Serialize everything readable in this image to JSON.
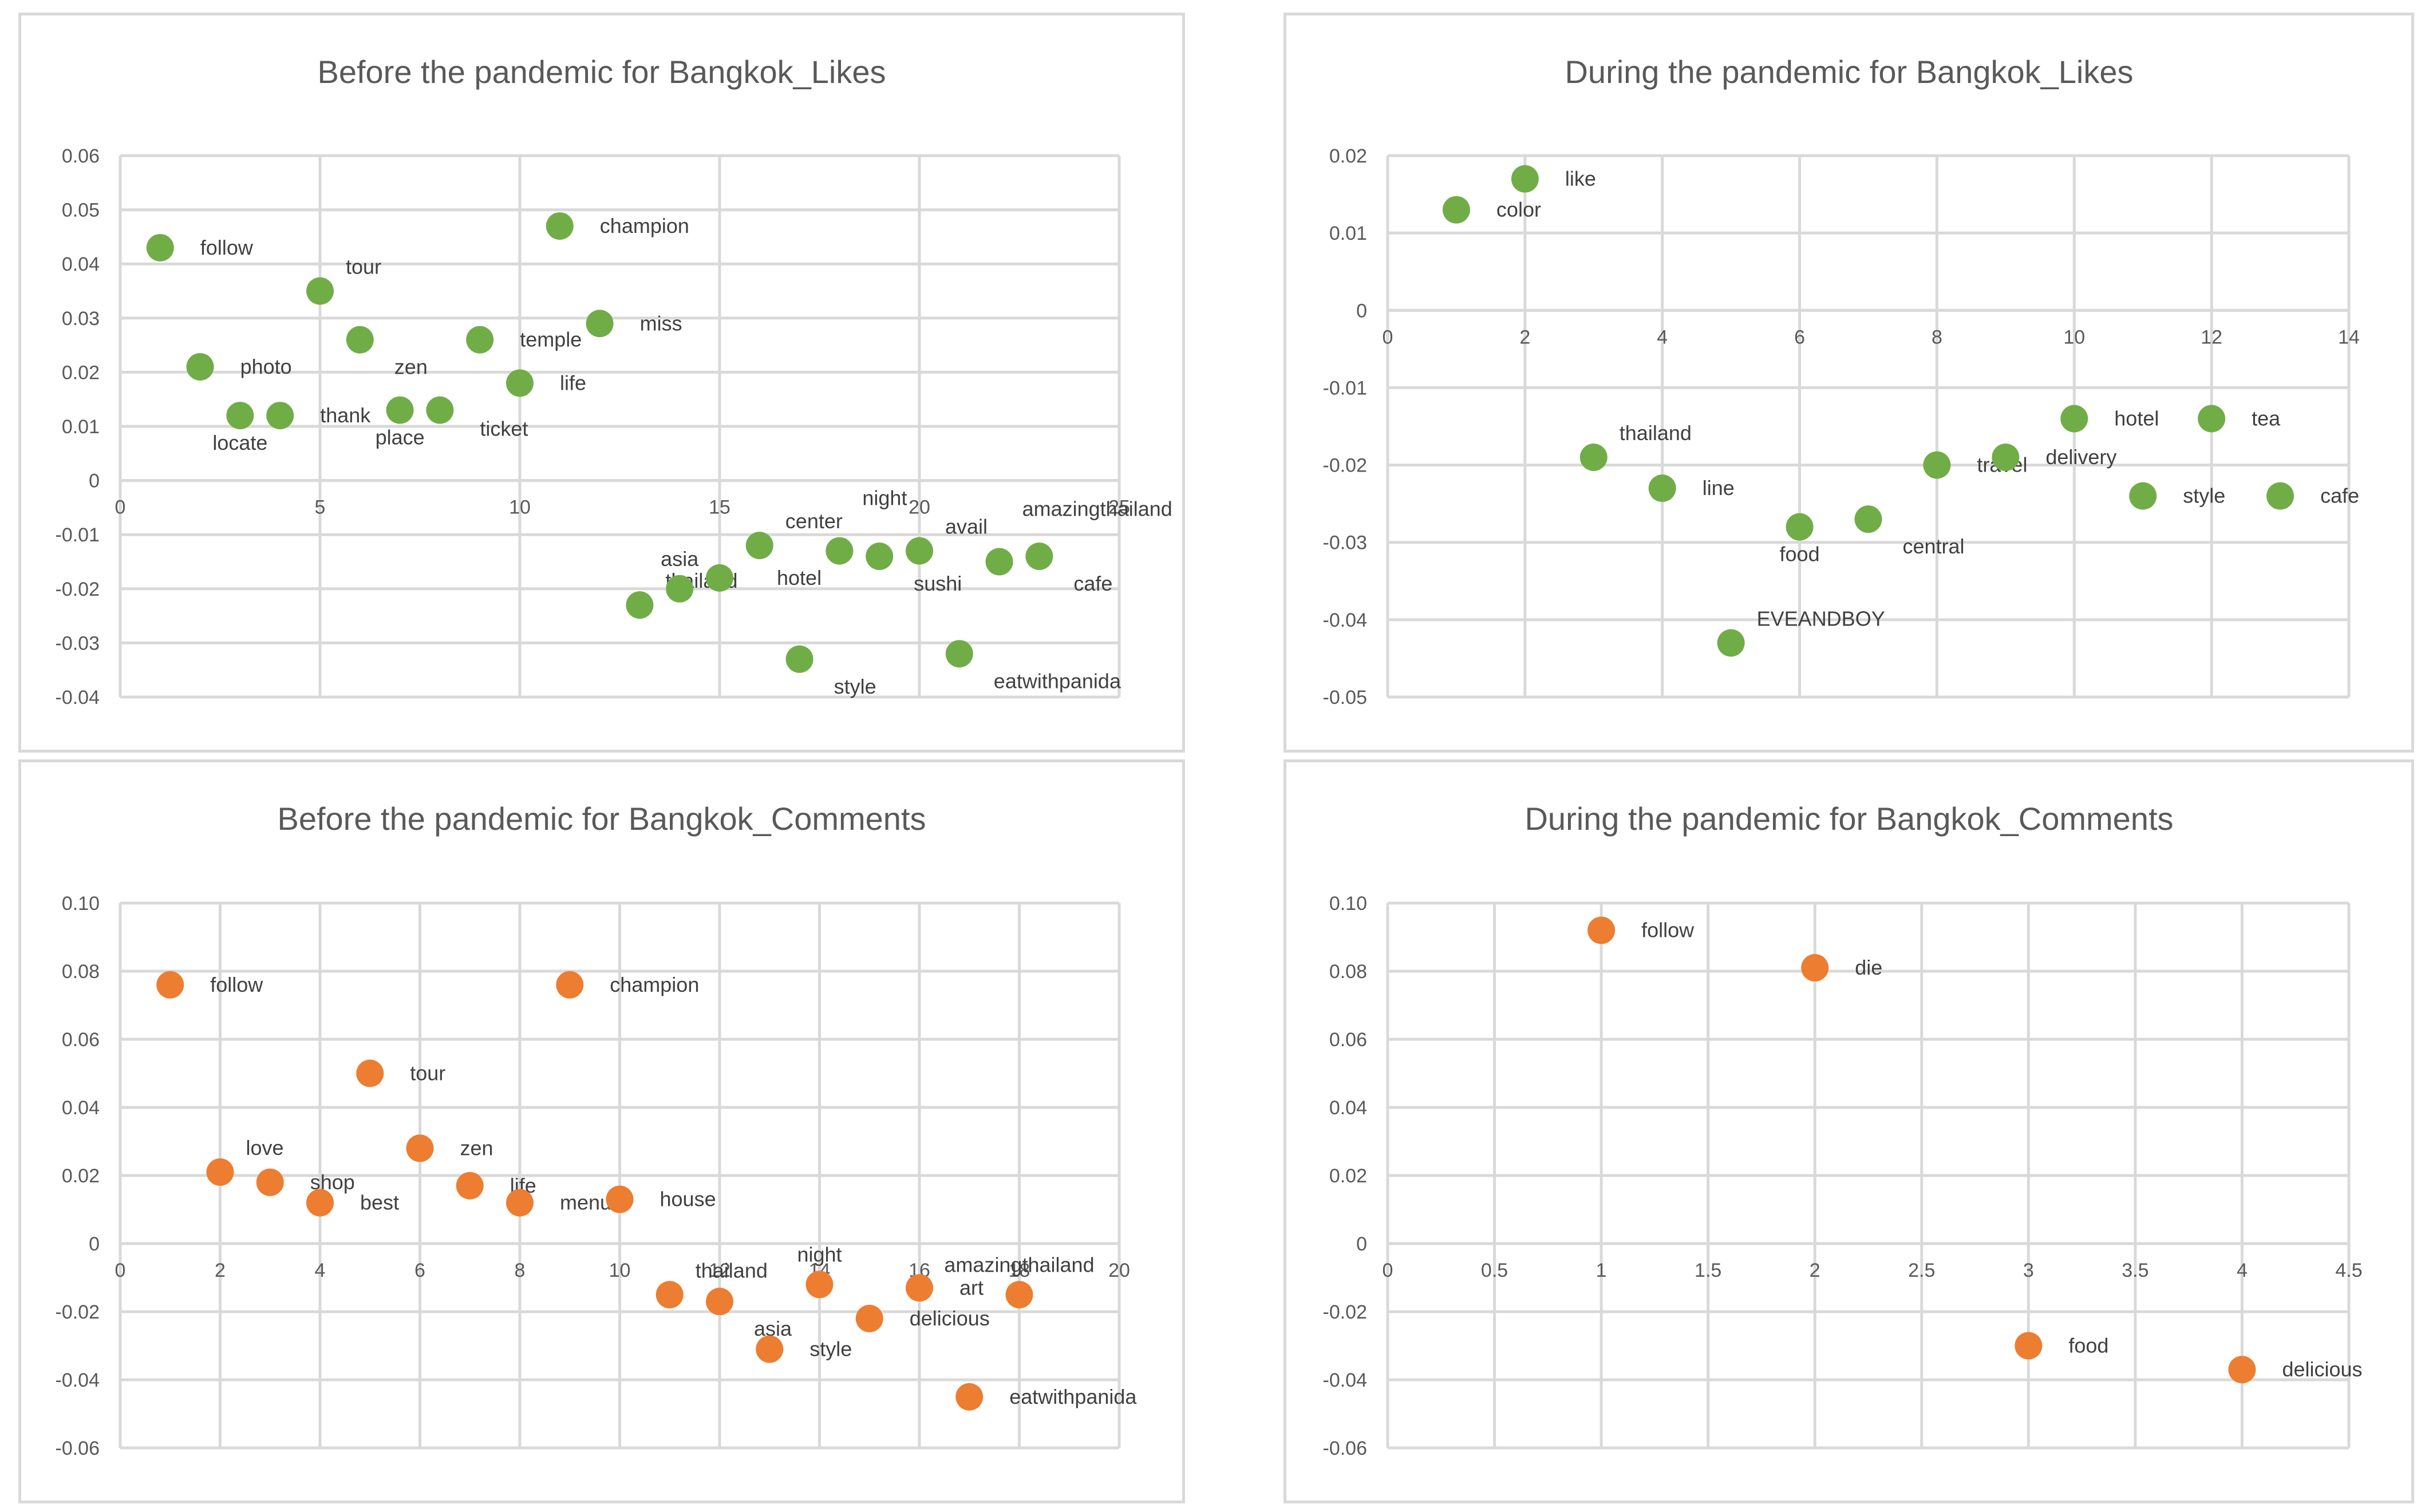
{
  "chart_data": [
    {
      "type": "scatter",
      "title": "Before the pandemic for Bangkok_Likes",
      "color": "#70AD47",
      "xlim": [
        0,
        25
      ],
      "xstep": 5,
      "ylim": [
        -0.04,
        0.06
      ],
      "ystep": 0.01,
      "ydecimals": 2,
      "points": [
        {
          "label": "follow",
          "x": 1,
          "y": 0.043,
          "lp": "right"
        },
        {
          "label": "photo",
          "x": 2,
          "y": 0.021,
          "lp": "right"
        },
        {
          "label": "locate",
          "x": 3,
          "y": 0.012,
          "lp": "below"
        },
        {
          "label": "thank",
          "x": 4,
          "y": 0.012,
          "lp": "right"
        },
        {
          "label": "tour",
          "x": 5,
          "y": 0.035,
          "lp": "aboveright"
        },
        {
          "label": "zen",
          "x": 6,
          "y": 0.026,
          "lp": "belowright"
        },
        {
          "label": "place",
          "x": 7,
          "y": 0.013,
          "lp": "below"
        },
        {
          "label": "ticket",
          "x": 8,
          "y": 0.013,
          "lp": "belowright2"
        },
        {
          "label": "temple",
          "x": 9,
          "y": 0.026,
          "lp": "right"
        },
        {
          "label": "life",
          "x": 10,
          "y": 0.018,
          "lp": "right"
        },
        {
          "label": "champion",
          "x": 11,
          "y": 0.047,
          "lp": "right"
        },
        {
          "label": "miss",
          "x": 12,
          "y": 0.029,
          "lp": "right"
        },
        {
          "label": "thailand",
          "x": 13,
          "y": -0.023,
          "lp": "aboveright"
        },
        {
          "label": "asia",
          "x": 14,
          "y": -0.02,
          "lp": "above"
        },
        {
          "label": "hotel",
          "x": 15,
          "y": -0.018,
          "lp": "farright"
        },
        {
          "label": "center",
          "x": 16,
          "y": -0.012,
          "lp": "aboveright"
        },
        {
          "label": "style",
          "x": 17,
          "y": -0.033,
          "lp": "belowright"
        },
        {
          "label": "night",
          "x": 18,
          "y": -0.013,
          "lp": "aboveright2"
        },
        {
          "label": "sushi",
          "x": 19,
          "y": -0.014,
          "lp": "belowright"
        },
        {
          "label": "avail",
          "x": 20,
          "y": -0.013,
          "lp": "aboveright"
        },
        {
          "label": "eatwithpanida",
          "x": 21,
          "y": -0.032,
          "lp": "belowright"
        },
        {
          "label": "amazingthailand",
          "x": 22,
          "y": -0.015,
          "lp": "aboveright2"
        },
        {
          "label": "cafe",
          "x": 23,
          "y": -0.014,
          "lp": "belowright"
        }
      ]
    },
    {
      "type": "scatter",
      "title": "During the pandemic for Bangkok_Likes",
      "color": "#70AD47",
      "xlim": [
        0,
        14
      ],
      "xstep": 2,
      "ylim": [
        -0.05,
        0.02
      ],
      "ystep": 0.01,
      "ydecimals": 2,
      "points": [
        {
          "label": "color",
          "x": 1,
          "y": 0.013,
          "lp": "right"
        },
        {
          "label": "like",
          "x": 2,
          "y": 0.017,
          "lp": "right"
        },
        {
          "label": "thailand",
          "x": 3,
          "y": -0.019,
          "lp": "aboveright"
        },
        {
          "label": "line",
          "x": 4,
          "y": -0.023,
          "lp": "right"
        },
        {
          "label": "EVEANDBOY",
          "x": 5,
          "y": -0.043,
          "lp": "aboveright"
        },
        {
          "label": "food",
          "x": 6,
          "y": -0.028,
          "lp": "below"
        },
        {
          "label": "central",
          "x": 7,
          "y": -0.027,
          "lp": "belowright"
        },
        {
          "label": "travel",
          "x": 8,
          "y": -0.02,
          "lp": "right"
        },
        {
          "label": "delivery",
          "x": 9,
          "y": -0.019,
          "lp": "right"
        },
        {
          "label": "hotel",
          "x": 10,
          "y": -0.014,
          "lp": "right"
        },
        {
          "label": "style",
          "x": 11,
          "y": -0.024,
          "lp": "right"
        },
        {
          "label": "tea",
          "x": 12,
          "y": -0.014,
          "lp": "right"
        },
        {
          "label": "cafe",
          "x": 13,
          "y": -0.024,
          "lp": "right"
        }
      ]
    },
    {
      "type": "scatter",
      "title": "Before the pandemic for Bangkok_Comments",
      "color": "#ED7D31",
      "xlim": [
        0,
        20
      ],
      "xstep": 2,
      "ylim": [
        -0.06,
        0.1
      ],
      "ystep": 0.02,
      "ydecimals": 2,
      "points": [
        {
          "label": "follow",
          "x": 1,
          "y": 0.076,
          "lp": "right"
        },
        {
          "label": "love",
          "x": 2,
          "y": 0.021,
          "lp": "aboveright"
        },
        {
          "label": "shop",
          "x": 3,
          "y": 0.018,
          "lp": "right"
        },
        {
          "label": "best",
          "x": 4,
          "y": 0.012,
          "lp": "right"
        },
        {
          "label": "tour",
          "x": 5,
          "y": 0.05,
          "lp": "right"
        },
        {
          "label": "zen",
          "x": 6,
          "y": 0.028,
          "lp": "right"
        },
        {
          "label": "life",
          "x": 7,
          "y": 0.017,
          "lp": "right"
        },
        {
          "label": "menu",
          "x": 8,
          "y": 0.012,
          "lp": "right"
        },
        {
          "label": "champion",
          "x": 9,
          "y": 0.076,
          "lp": "right"
        },
        {
          "label": "house",
          "x": 10,
          "y": 0.013,
          "lp": "right"
        },
        {
          "label": "thailand",
          "x": 11,
          "y": -0.015,
          "lp": "aboveright"
        },
        {
          "label": "asia",
          "x": 12,
          "y": -0.017,
          "lp": "belowright"
        },
        {
          "label": "style",
          "x": 13,
          "y": -0.031,
          "lp": "right"
        },
        {
          "label": "night",
          "x": 14,
          "y": -0.012,
          "lp": "above"
        },
        {
          "label": "delicious",
          "x": 15,
          "y": -0.022,
          "lp": "right"
        },
        {
          "label": "art",
          "x": 16,
          "y": -0.013,
          "lp": "right"
        },
        {
          "label": "eatwithpanida",
          "x": 17,
          "y": -0.045,
          "lp": "right"
        },
        {
          "label": "amazingthailand",
          "x": 18,
          "y": -0.015,
          "lp": "above"
        }
      ]
    },
    {
      "type": "scatter",
      "title": "During the pandemic for Bangkok_Comments",
      "color": "#ED7D31",
      "xlim": [
        0,
        4.5
      ],
      "xstep": 0.5,
      "ylim": [
        -0.06,
        0.1
      ],
      "ystep": 0.02,
      "ydecimals": 2,
      "points": [
        {
          "label": "follow",
          "x": 1,
          "y": 0.092,
          "lp": "right"
        },
        {
          "label": "die",
          "x": 2,
          "y": 0.081,
          "lp": "right"
        },
        {
          "label": "food",
          "x": 3,
          "y": -0.03,
          "lp": "right"
        },
        {
          "label": "delicious",
          "x": 4,
          "y": -0.037,
          "lp": "right"
        }
      ]
    }
  ]
}
